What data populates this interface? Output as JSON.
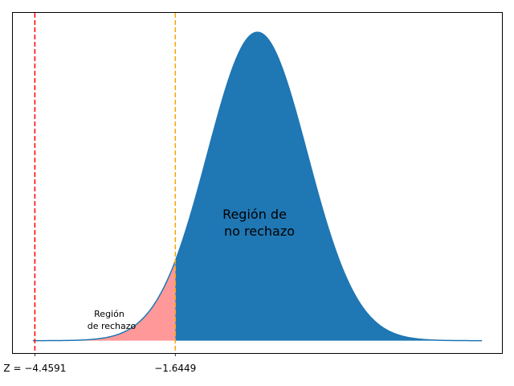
{
  "chart_data": {
    "type": "area",
    "title": "",
    "xlabel": "",
    "ylabel": "",
    "xlim": [
      -4.9,
      4.9
    ],
    "ylim": [
      -0.016,
      0.424
    ],
    "grid": false,
    "distribution": {
      "name": "standard normal",
      "mean": 0,
      "sd": 1
    },
    "x_range": [
      -4.5,
      4.5
    ],
    "critical_value": -1.6449,
    "test_statistic": -4.4591,
    "series": [
      {
        "region": "rejection",
        "x_from": -4.5,
        "x_to": -1.6449,
        "color": "#ff9999"
      },
      {
        "region": "non_rejection",
        "x_from": -1.6449,
        "x_to": 4.5,
        "color": "#1f77b4"
      }
    ],
    "curve_color": "#1f77b4",
    "reference_lines": [
      {
        "x": -4.4591,
        "color": "#ff0000",
        "style": "dashed"
      },
      {
        "x": -1.6449,
        "color": "#ffa500",
        "style": "dashed"
      }
    ],
    "tick_labels": [
      {
        "x": -4.4591,
        "label": "Z = −4.4591"
      },
      {
        "x": -1.6449,
        "label": "−1.6449"
      }
    ],
    "annotations": [
      {
        "lines": [
          "Región",
          "de rechazo"
        ]
      },
      {
        "lines": [
          "Región de",
          "no rechazo"
        ]
      }
    ]
  }
}
